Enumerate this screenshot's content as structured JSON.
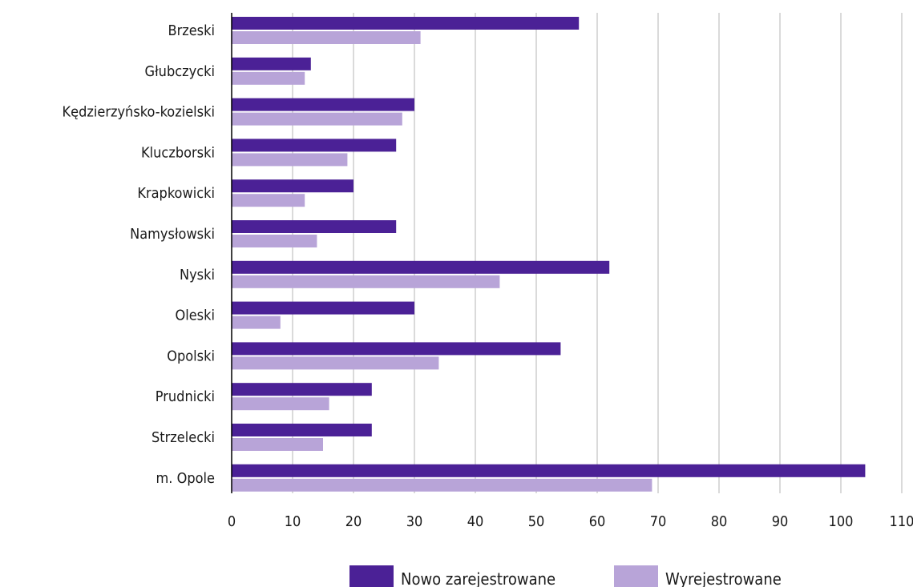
{
  "chart_data": {
    "type": "bar",
    "orientation": "horizontal",
    "categories": [
      "Brzeski",
      "Głubczycki",
      "Kędzierzyńsko-kozielski",
      "Kluczborski",
      "Krapkowicki",
      "Namysłowski",
      "Nyski",
      "Oleski",
      "Opolski",
      "Prudnicki",
      "Strzelecki",
      "m. Opole"
    ],
    "series": [
      {
        "name": "Nowo zarejestrowane",
        "color": "#4b2196",
        "values": [
          57,
          13,
          30,
          27,
          20,
          27,
          62,
          30,
          54,
          23,
          23,
          104
        ]
      },
      {
        "name": "Wyrejestrowane",
        "color": "#b8a4d8",
        "values": [
          31,
          12,
          28,
          19,
          12,
          14,
          44,
          8,
          34,
          16,
          15,
          69
        ]
      }
    ],
    "xlim": [
      0,
      110
    ],
    "xticks": [
      0,
      10,
      20,
      30,
      40,
      50,
      60,
      70,
      80,
      90,
      100,
      110
    ],
    "grid": "vertical",
    "legend_position": "bottom",
    "title": "",
    "xlabel": "",
    "ylabel": ""
  }
}
